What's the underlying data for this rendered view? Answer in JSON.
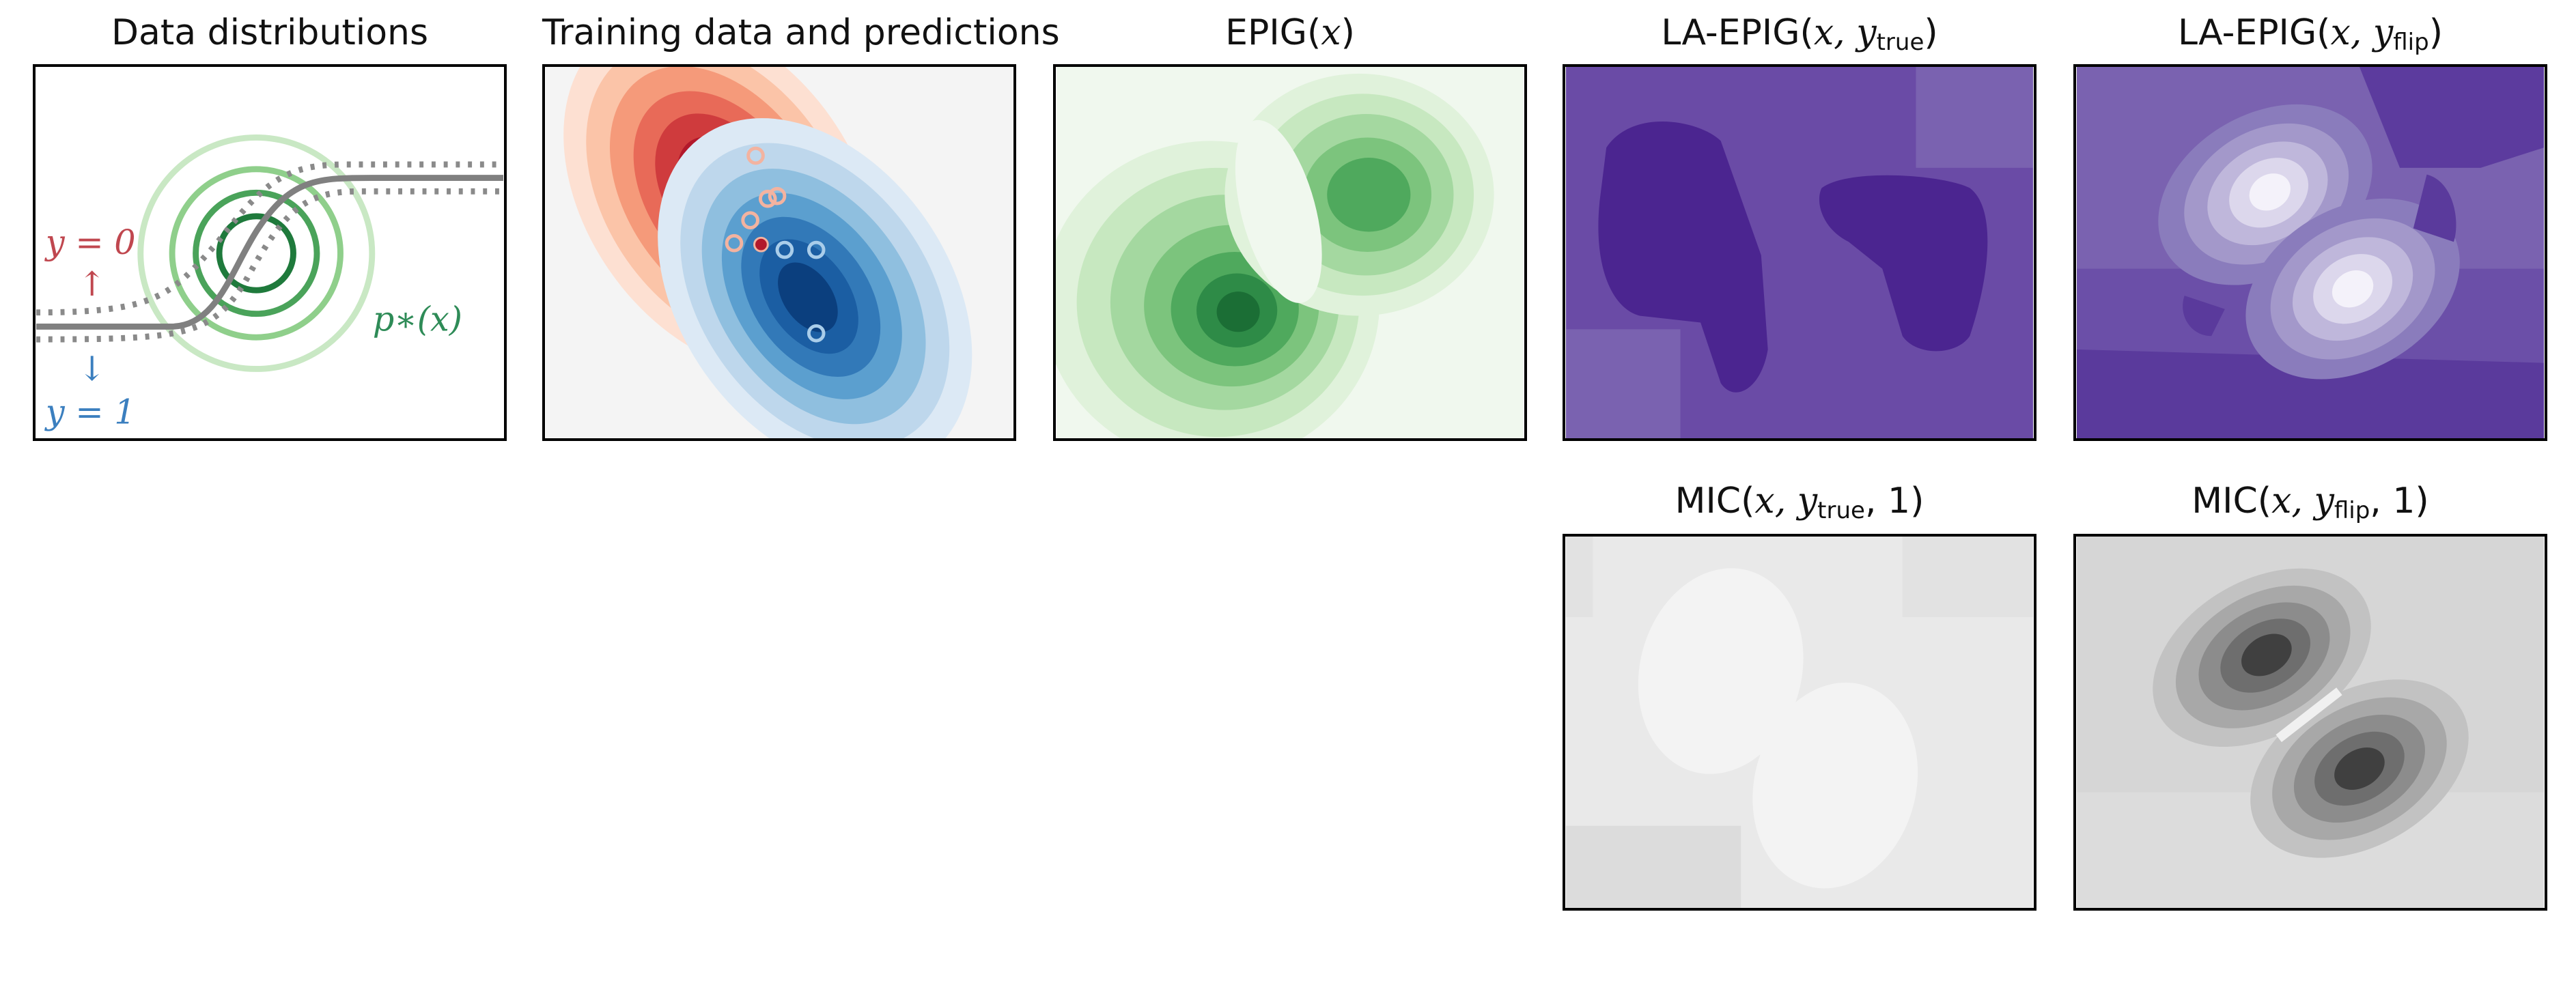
{
  "panels": [
    {
      "id": "data-distributions",
      "title": "Data distributions"
    },
    {
      "id": "training-data",
      "title": "Training data and predictions"
    },
    {
      "id": "epig",
      "title_prefix": "EPIG(",
      "title_var": "x",
      "title_suffix": ")"
    },
    {
      "id": "la-epig-true",
      "title_prefix": "LA-EPIG(",
      "title_var": "x, y",
      "title_sub": "true",
      "title_suffix": ")"
    },
    {
      "id": "la-epig-flip",
      "title_prefix": "LA-EPIG(",
      "title_var": "x, y",
      "title_sub": "flip",
      "title_suffix": ")"
    },
    {
      "id": "mic-true",
      "title_prefix": "MIC(",
      "title_var": "x, y",
      "title_sub": "true",
      "title_suffix": ", 1)"
    },
    {
      "id": "mic-flip",
      "title_prefix": "MIC(",
      "title_var": "x, y",
      "title_sub": "flip",
      "title_suffix": ", 1)"
    }
  ],
  "annotations": {
    "y0": "y = 0",
    "y1": "y = 1",
    "arrow_up": "↑",
    "arrow_down": "↓",
    "p_star": "p∗(x)"
  },
  "colors": {
    "class0": "#c0474f",
    "class1": "#3b7fbf",
    "target": "#2e8b57",
    "boundary": "#808080"
  }
}
